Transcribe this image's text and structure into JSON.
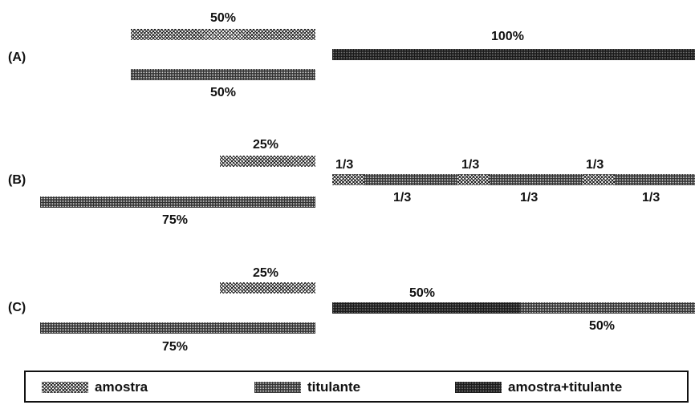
{
  "rows": [
    {
      "id": "A",
      "label": "(A)"
    },
    {
      "id": "B",
      "label": "(B)"
    },
    {
      "id": "C",
      "label": "(C)"
    }
  ],
  "row_a": {
    "amostra_pct": "50%",
    "titulante_pct": "50%",
    "mix_pct": "100%"
  },
  "row_b": {
    "amostra_pct": "25%",
    "titulante_pct": "75%",
    "amostra_thirds": [
      "1/3",
      "1/3",
      "1/3"
    ],
    "titulante_thirds": [
      "1/3",
      "1/3",
      "1/3"
    ]
  },
  "row_c": {
    "amostra_pct": "25%",
    "titulante_pct": "75%",
    "mix_top_pct": "50%",
    "mix_bottom_pct": "50%"
  },
  "legend": {
    "amostra": "amostra",
    "titulante": "titulante",
    "mix": "amostra+titulante"
  },
  "colors": {
    "text": "#111111",
    "amostra_pattern": "crosshatch",
    "titulante_pattern": "light-dotted",
    "mix_pattern": "dark-dotted"
  }
}
